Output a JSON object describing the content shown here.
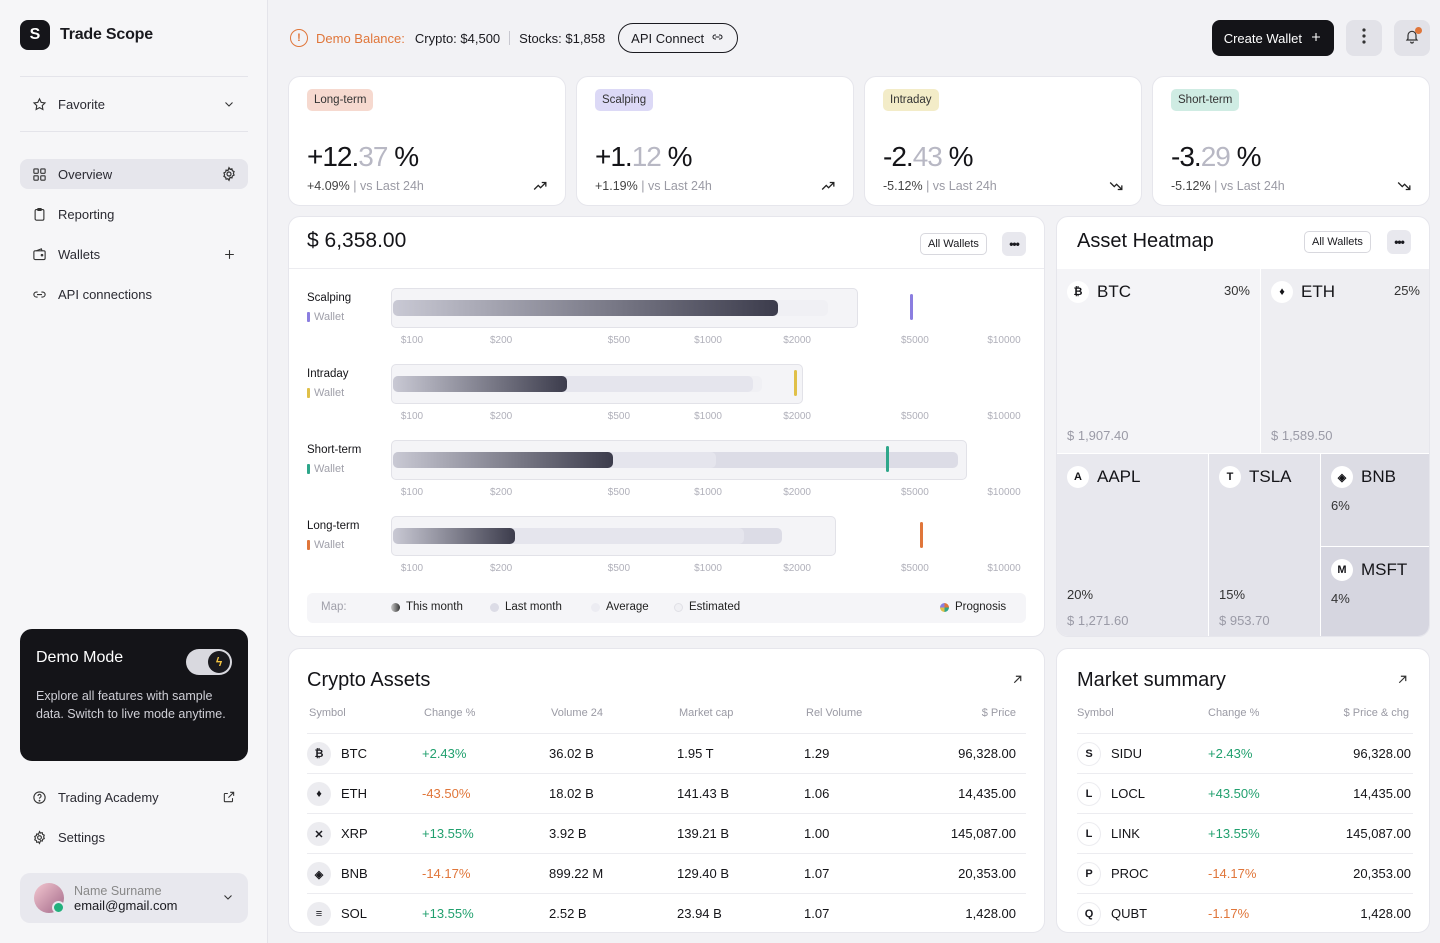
{
  "app": {
    "name": "Trade Scope"
  },
  "sidebar": {
    "favorite": "Favorite",
    "items": [
      {
        "label": "Overview",
        "icon": "grid-icon",
        "trail": "gear-icon"
      },
      {
        "label": "Reporting",
        "icon": "clipboard-icon",
        "trail": ""
      },
      {
        "label": "Wallets",
        "icon": "wallet-icon",
        "trail": "plus-icon"
      },
      {
        "label": "API connections",
        "icon": "link-icon",
        "trail": ""
      }
    ],
    "demo": {
      "title": "Demo Mode",
      "desc": "Explore all features with sample data. Switch to live mode anytime.",
      "enabled": true
    },
    "bottom": [
      {
        "label": "Trading Academy",
        "icon": "help-icon"
      },
      {
        "label": "Settings",
        "icon": "gear-icon"
      }
    ],
    "user": {
      "name": "Name Surname",
      "email": "email@gmail.com"
    }
  },
  "topbar": {
    "demo_label": "Demo Balance:",
    "crypto": "Crypto: $4,500",
    "stocks": "Stocks: $1,858",
    "api_button": "API Connect",
    "create_button": "Create Wallet"
  },
  "stats": [
    {
      "tag": "Long-term",
      "tag_color": "#f6d9cf",
      "whole": "+12.",
      "frac": "37",
      "pct": " %",
      "change": "+4.09%",
      "vs": " | vs Last 24h",
      "trend": "up"
    },
    {
      "tag": "Scalping",
      "tag_color": "#dcd9f6",
      "whole": "+1.",
      "frac": "12",
      "pct": " %",
      "change": "+1.19%",
      "vs": " | vs Last 24h",
      "trend": "up"
    },
    {
      "tag": "Intraday",
      "tag_color": "#f3ecc8",
      "whole": "-2.",
      "frac": "43",
      "pct": " %",
      "change": "-5.12%",
      "vs": " | vs Last 24h",
      "trend": "down"
    },
    {
      "tag": "Short-term",
      "tag_color": "#cfece3",
      "whole": "-3.",
      "frac": "29",
      "pct": " %",
      "change": "-5.12%",
      "vs": " | vs Last 24h",
      "trend": "down"
    }
  ],
  "portfolio": {
    "total": "$ 6,358.00",
    "filter": "All Wallets",
    "ticks": [
      "$100",
      "$200",
      "$500",
      "$1000",
      "$2000",
      "$5000",
      "$10000"
    ],
    "rows": [
      {
        "name": "Scalping",
        "sub": "Wallet",
        "color": "#8b7ee0",
        "this_month": 1700,
        "last_month": 700,
        "average": 3200,
        "estimated": 2500,
        "prognosis": 4800
      },
      {
        "name": "Intraday",
        "sub": "Wallet",
        "color": "#e0c048",
        "this_month": 330,
        "last_month": 1400,
        "average": 2100,
        "estimated": 1500,
        "prognosis": 1950
      },
      {
        "name": "Short-term",
        "sub": "Wallet",
        "color": "#2ea68a",
        "this_month": 470,
        "last_month": 6900,
        "average": 7500,
        "estimated": 1050,
        "prognosis": 4000
      },
      {
        "name": "Long-term",
        "sub": "Wallet",
        "color": "#e0763a",
        "this_month": 220,
        "last_month": 1750,
        "average": 2700,
        "estimated": 1300,
        "prognosis": 5200
      }
    ],
    "legend": {
      "label": "Map:",
      "items": [
        "This month",
        "Last month",
        "Average",
        "Estimated",
        "Prognosis"
      ]
    }
  },
  "heatmap": {
    "title": "Asset Heatmap",
    "filter": "All Wallets",
    "cells": [
      {
        "sym": "BTC",
        "badge": "₿",
        "pct": "30%",
        "val": "$ 1,907.40",
        "share": 30
      },
      {
        "sym": "ETH",
        "badge": "♦",
        "pct": "25%",
        "val": "$ 1,589.50",
        "share": 25
      },
      {
        "sym": "AAPL",
        "badge": "A",
        "pct": "20%",
        "val": "$ 1,271.60",
        "share": 20
      },
      {
        "sym": "TSLA",
        "badge": "T",
        "pct": "15%",
        "val": "$ 953.70",
        "share": 15
      },
      {
        "sym": "BNB",
        "badge": "◈",
        "pct": "6%",
        "val": "",
        "share": 6
      },
      {
        "sym": "MSFT",
        "badge": "M",
        "pct": "4%",
        "val": "",
        "share": 4
      }
    ]
  },
  "crypto": {
    "title": "Crypto Assets",
    "headers": [
      "Symbol",
      "Change %",
      "Volume 24",
      "Market cap",
      "Rel Volume",
      "$ Price"
    ],
    "rows": [
      {
        "icon": "₿",
        "sym": "BTC",
        "change": "+2.43%",
        "dir": "pos",
        "vol": "36.02 B",
        "cap": "1.95 T",
        "rel": "1.29",
        "price": "96,328.00"
      },
      {
        "icon": "♦",
        "sym": "ETH",
        "change": "-43.50%",
        "dir": "neg",
        "vol": "18.02 B",
        "cap": "141.43 B",
        "rel": "1.06",
        "price": "14,435.00"
      },
      {
        "icon": "✕",
        "sym": "XRP",
        "change": "+13.55%",
        "dir": "pos",
        "vol": "3.92 B",
        "cap": "139.21 B",
        "rel": "1.00",
        "price": "145,087.00"
      },
      {
        "icon": "◈",
        "sym": "BNB",
        "change": "-14.17%",
        "dir": "neg",
        "vol": "899.22 M",
        "cap": "129.40 B",
        "rel": "1.07",
        "price": "20,353.00"
      },
      {
        "icon": "≡",
        "sym": "SOL",
        "change": "+13.55%",
        "dir": "pos",
        "vol": "2.52 B",
        "cap": "23.94 B",
        "rel": "1.07",
        "price": "1,428.00"
      }
    ]
  },
  "market": {
    "title": "Market summary",
    "headers": [
      "Symbol",
      "Change %",
      "$ Price & chg"
    ],
    "rows": [
      {
        "icon": "S",
        "sym": "SIDU",
        "change": "+2.43%",
        "dir": "pos",
        "price": "96,328.00"
      },
      {
        "icon": "L",
        "sym": "LOCL",
        "change": "+43.50%",
        "dir": "pos",
        "price": "14,435.00"
      },
      {
        "icon": "L",
        "sym": "LINK",
        "change": "+13.55%",
        "dir": "pos",
        "price": "145,087.00"
      },
      {
        "icon": "P",
        "sym": "PROC",
        "change": "-14.17%",
        "dir": "neg",
        "price": "20,353.00"
      },
      {
        "icon": "Q",
        "sym": "QUBT",
        "change": "-1.17%",
        "dir": "neg",
        "price": "1,428.00"
      }
    ]
  }
}
